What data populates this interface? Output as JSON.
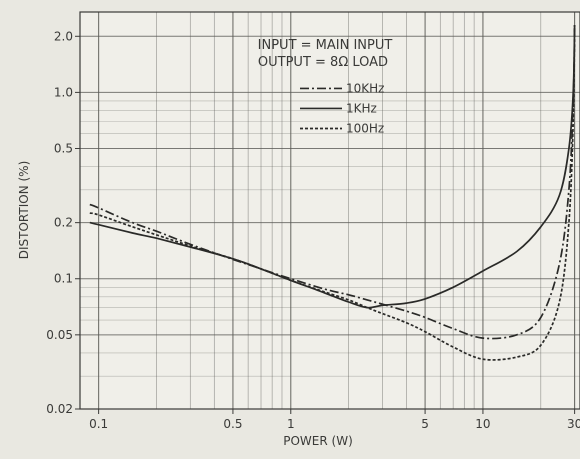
{
  "chart_data": {
    "type": "line",
    "x_scale": "log",
    "y_scale": "log",
    "xlabel": "POWER (W)",
    "ylabel": "DISTORTION (%)",
    "xlim": [
      0.08,
      32
    ],
    "ylim": [
      0.02,
      2.7
    ],
    "x_ticks": [
      {
        "value": 0.1,
        "label": "0.1"
      },
      {
        "value": 0.5,
        "label": "0.5"
      },
      {
        "value": 1,
        "label": "1"
      },
      {
        "value": 5,
        "label": "5"
      },
      {
        "value": 10,
        "label": "10"
      },
      {
        "value": 30,
        "label": "30"
      }
    ],
    "y_ticks": [
      {
        "value": 0.02,
        "label": "0.02"
      },
      {
        "value": 0.05,
        "label": "0.05"
      },
      {
        "value": 0.1,
        "label": "0.1"
      },
      {
        "value": 0.2,
        "label": "0.2"
      },
      {
        "value": 0.5,
        "label": "0.5"
      },
      {
        "value": 1.0,
        "label": "1.0"
      },
      {
        "value": 2.0,
        "label": "2.0"
      }
    ],
    "annotations": [
      "INPUT = MAIN INPUT",
      "OUTPUT = 8Ω LOAD"
    ],
    "grid": true,
    "legend_position": "top-center",
    "series": [
      {
        "name": "10KHz",
        "style": "dash-dot",
        "color": "#2a2a28",
        "x": [
          0.09,
          0.1,
          0.15,
          0.2,
          0.3,
          0.5,
          0.7,
          1,
          1.5,
          2,
          2.5,
          3,
          4,
          5,
          7,
          10,
          15,
          20,
          25,
          28,
          29.5,
          30
        ],
        "y": [
          0.25,
          0.24,
          0.2,
          0.18,
          0.153,
          0.127,
          0.113,
          0.1,
          0.088,
          0.082,
          0.077,
          0.073,
          0.067,
          0.062,
          0.054,
          0.048,
          0.05,
          0.062,
          0.12,
          0.3,
          0.9,
          2.3
        ]
      },
      {
        "name": "1KHz",
        "style": "solid",
        "color": "#2a2a28",
        "x": [
          0.09,
          0.1,
          0.15,
          0.2,
          0.3,
          0.5,
          0.7,
          1,
          1.5,
          2,
          2.5,
          3,
          4,
          5,
          7,
          10,
          15,
          20,
          25,
          28,
          29.5,
          30
        ],
        "y": [
          0.2,
          0.195,
          0.176,
          0.165,
          0.148,
          0.128,
          0.113,
          0.098,
          0.084,
          0.075,
          0.07,
          0.072,
          0.074,
          0.078,
          0.09,
          0.11,
          0.14,
          0.19,
          0.28,
          0.5,
          1.0,
          2.3
        ]
      },
      {
        "name": "100Hz",
        "style": "dotted",
        "color": "#2a2a28",
        "x": [
          0.09,
          0.1,
          0.15,
          0.2,
          0.3,
          0.5,
          0.7,
          1,
          1.5,
          2,
          2.5,
          3,
          4,
          5,
          7,
          10,
          15,
          20,
          25,
          28,
          29.5,
          30
        ],
        "y": [
          0.225,
          0.22,
          0.19,
          0.172,
          0.15,
          0.128,
          0.113,
          0.098,
          0.085,
          0.077,
          0.07,
          0.065,
          0.058,
          0.052,
          0.043,
          0.037,
          0.038,
          0.044,
          0.075,
          0.2,
          0.7,
          2.3
        ]
      }
    ]
  }
}
